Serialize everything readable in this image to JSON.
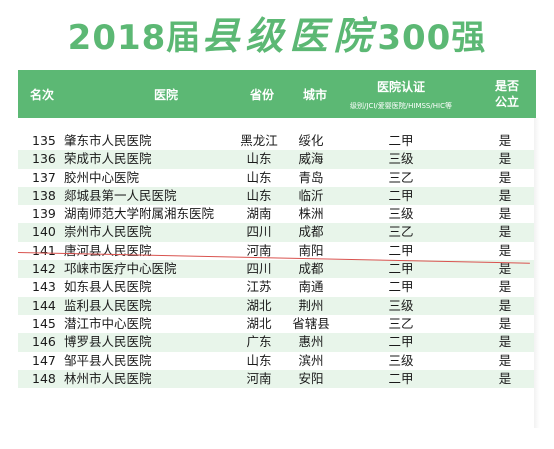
{
  "title": {
    "prefix": "2018届",
    "calligraphy": "县级医院",
    "suffix": "300强"
  },
  "header": {
    "rank": "名次",
    "hospital": "医院",
    "province": "省份",
    "city": "城市",
    "certification": "医院认证",
    "certification_sub": "级别/JCI/爱婴医院/HIMSS/HIC等",
    "public_line1": "是否",
    "public_line2": "公立"
  },
  "rows": [
    {
      "rank": "135",
      "name": "肇东市人民医院",
      "province": "黑龙江",
      "city": "绥化",
      "grade": "二甲",
      "public": "是"
    },
    {
      "rank": "136",
      "name": "荣成市人民医院",
      "province": "山东",
      "city": "威海",
      "grade": "三级",
      "public": "是"
    },
    {
      "rank": "137",
      "name": "胶州中心医院",
      "province": "山东",
      "city": "青岛",
      "grade": "三乙",
      "public": "是"
    },
    {
      "rank": "138",
      "name": "郯城县第一人民医院",
      "province": "山东",
      "city": "临沂",
      "grade": "二甲",
      "public": "是"
    },
    {
      "rank": "139",
      "name": "湖南师范大学附属湘东医院",
      "province": "湖南",
      "city": "株洲",
      "grade": "三级",
      "public": "是"
    },
    {
      "rank": "140",
      "name": "崇州市人民医院",
      "province": "四川",
      "city": "成都",
      "grade": "三乙",
      "public": "是"
    },
    {
      "rank": "141",
      "name": "唐河县人民医院",
      "province": "河南",
      "city": "南阳",
      "grade": "二甲",
      "public": "是"
    },
    {
      "rank": "142",
      "name": "邛崃市医疗中心医院",
      "province": "四川",
      "city": "成都",
      "grade": "二甲",
      "public": "是"
    },
    {
      "rank": "143",
      "name": "如东县人民医院",
      "province": "江苏",
      "city": "南通",
      "grade": "二甲",
      "public": "是"
    },
    {
      "rank": "144",
      "name": "监利县人民医院",
      "province": "湖北",
      "city": "荆州",
      "grade": "三级",
      "public": "是"
    },
    {
      "rank": "145",
      "name": "潜江市中心医院",
      "province": "湖北",
      "city": "省辖县",
      "grade": "三乙",
      "public": "是"
    },
    {
      "rank": "146",
      "name": "博罗县人民医院",
      "province": "广东",
      "city": "惠州",
      "grade": "二甲",
      "public": "是"
    },
    {
      "rank": "147",
      "name": "邹平县人民医院",
      "province": "山东",
      "city": "滨州",
      "grade": "三级",
      "public": "是"
    },
    {
      "rank": "148",
      "name": "林州市人民医院",
      "province": "河南",
      "city": "安阳",
      "grade": "二甲",
      "public": "是"
    }
  ]
}
